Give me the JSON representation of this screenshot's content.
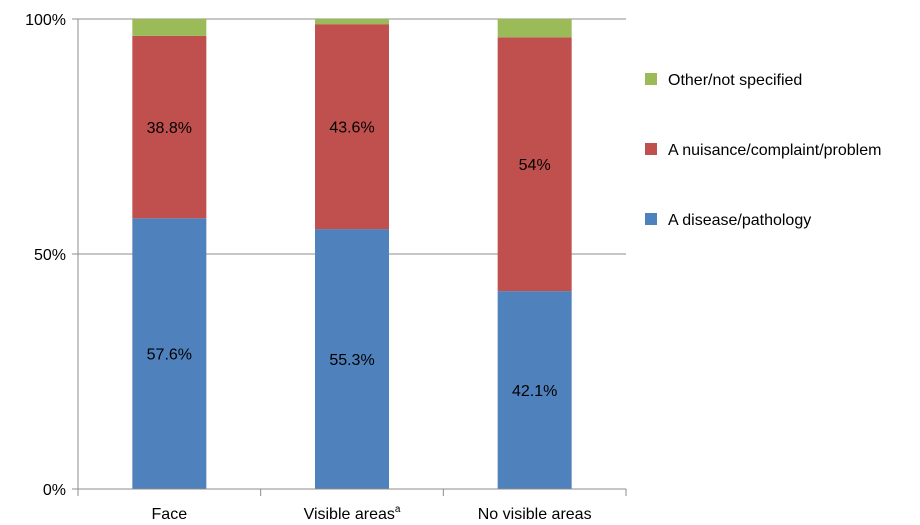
{
  "chart_data": {
    "type": "bar",
    "stacked": true,
    "categories": [
      "Face",
      "Visible areas",
      "No visible areas"
    ],
    "category_superscripts": [
      "",
      "a",
      ""
    ],
    "series": [
      {
        "name": "A disease/pathology",
        "color": "#4F81BD",
        "values": [
          57.6,
          55.3,
          42.1
        ],
        "labels": [
          "57.6%",
          "55.3%",
          "42.1%"
        ]
      },
      {
        "name": "A nuisance/complaint/problem",
        "color": "#C0504D",
        "values": [
          38.8,
          43.6,
          54.0
        ],
        "labels": [
          "38.8%",
          "43.6%",
          "54%"
        ]
      },
      {
        "name": "Other/not specified",
        "color": "#9BBB59",
        "values": [
          3.6,
          1.1,
          3.9
        ],
        "labels": [
          "",
          "",
          ""
        ]
      }
    ],
    "ylim": [
      0,
      100
    ],
    "y_ticks": [
      0,
      50,
      100
    ],
    "y_tick_labels": [
      "0%",
      "50%",
      "100%"
    ],
    "grid": true,
    "legend_position": "right",
    "legend_order": [
      "Other/not specified",
      "A nuisance/complaint/problem",
      "A disease/pathology"
    ]
  }
}
